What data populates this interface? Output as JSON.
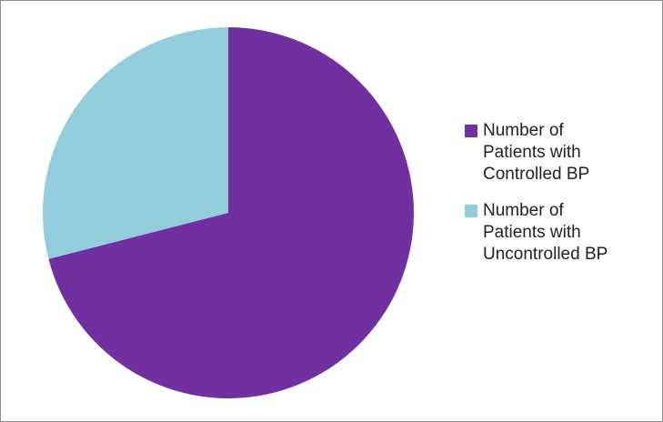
{
  "chart_data": {
    "type": "pie",
    "title": "",
    "start_angle_deg": 0,
    "direction": "clockwise",
    "legend_position": "right",
    "slices": [
      {
        "label": "Number of Patients with Controlled BP",
        "value": 71,
        "color": "#7030a0"
      },
      {
        "label": "Number of Patients with Uncontrolled BP",
        "value": 29,
        "color": "#92cddc"
      }
    ]
  },
  "legend": {
    "items": [
      {
        "text": "Number of\nPatients with\nControlled BP",
        "color": "#7030a0"
      },
      {
        "text": "Number of\nPatients with\nUncontrolled BP",
        "color": "#92cddc"
      }
    ]
  }
}
